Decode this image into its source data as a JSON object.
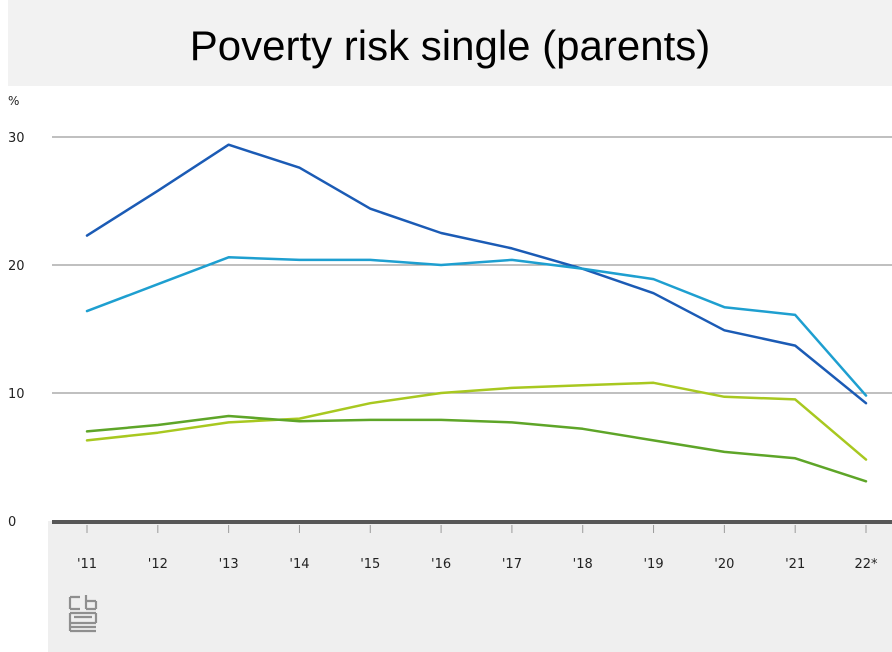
{
  "title": "Poverty risk single (parents)",
  "chart_data": {
    "type": "line",
    "title": "Poverty risk single (parents)",
    "ylabel": "%",
    "xlabel": "",
    "ylim": [
      0,
      30
    ],
    "yticks": [
      "0",
      "10",
      "20",
      "30"
    ],
    "categories": [
      "'11",
      "'12",
      "'13",
      "'14",
      "'15",
      "'16",
      "'17",
      "'18",
      "'19",
      "'20",
      "'21",
      "22*"
    ],
    "grid": true,
    "series": [
      {
        "color": "#1b5bb5",
        "values": [
          22.3,
          25.8,
          29.4,
          27.6,
          24.4,
          22.5,
          21.3,
          19.7,
          17.8,
          14.9,
          13.7,
          9.2
        ]
      },
      {
        "color": "#1e9fd0",
        "values": [
          16.4,
          18.5,
          20.6,
          20.4,
          20.4,
          20.0,
          20.4,
          19.7,
          18.9,
          16.7,
          16.1,
          9.8
        ]
      },
      {
        "color": "#a8c820",
        "values": [
          6.3,
          6.9,
          7.7,
          8.0,
          9.2,
          10.0,
          10.4,
          10.6,
          10.8,
          9.7,
          9.5,
          4.8
        ]
      },
      {
        "color": "#5ea528",
        "values": [
          7.0,
          7.5,
          8.2,
          7.8,
          7.9,
          7.9,
          7.7,
          7.2,
          6.3,
          5.4,
          4.9,
          3.1
        ]
      }
    ]
  }
}
